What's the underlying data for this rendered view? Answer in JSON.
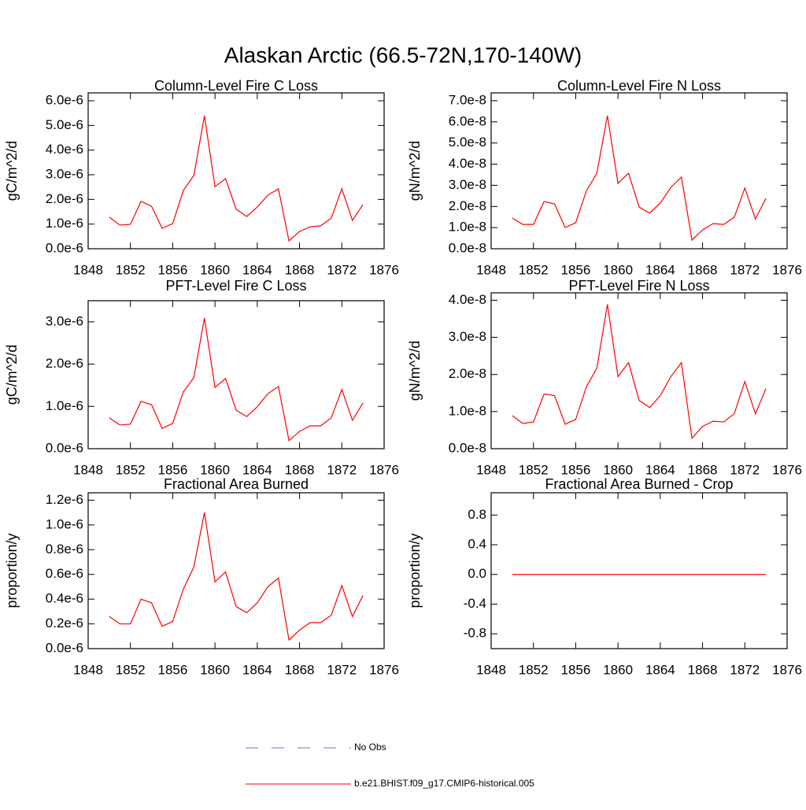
{
  "title": "Alaskan Arctic (66.5-72N,170-140W)",
  "chart_data": [
    {
      "type": "line",
      "title": "Column-Level Fire C Loss",
      "ylabel": "gC/m^2/d",
      "color": "#ff0000",
      "x": [
        1850,
        1851,
        1852,
        1853,
        1854,
        1855,
        1856,
        1857,
        1858,
        1859,
        1860,
        1861,
        1862,
        1863,
        1864,
        1865,
        1866,
        1867,
        1868,
        1869,
        1870,
        1871,
        1872,
        1873,
        1874
      ],
      "values": [
        1.28e-06,
        9.6e-07,
        9.9e-07,
        1.92e-06,
        1.72e-06,
        8.3e-07,
        1.02e-06,
        2.36e-06,
        2.97e-06,
        5.39e-06,
        2.52e-06,
        2.84e-06,
        1.6e-06,
        1.31e-06,
        1.69e-06,
        2.17e-06,
        2.43e-06,
        3.2e-07,
        7e-07,
        8.9e-07,
        9.3e-07,
        1.24e-06,
        2.43e-06,
        1.15e-06,
        1.79e-06
      ],
      "xlim": [
        1848,
        1876
      ],
      "xticks": [
        1848,
        1852,
        1856,
        1860,
        1864,
        1868,
        1872,
        1876
      ],
      "ylim": [
        0,
        6.32e-06
      ],
      "yticks": [
        {
          "value": 0,
          "label": "0.0e-6"
        },
        {
          "value": 1e-06,
          "label": "1.0e-6"
        },
        {
          "value": 2e-06,
          "label": "2.0e-6"
        },
        {
          "value": 3e-06,
          "label": "3.0e-6"
        },
        {
          "value": 4e-06,
          "label": "4.0e-6"
        },
        {
          "value": 5e-06,
          "label": "5.0e-6"
        },
        {
          "value": 6e-06,
          "label": "6.0e-6"
        }
      ]
    },
    {
      "type": "line",
      "title": "Column-Level Fire N Loss",
      "ylabel": "gN/m^2/d",
      "color": "#ff0000",
      "x": [
        1850,
        1851,
        1852,
        1853,
        1854,
        1855,
        1856,
        1857,
        1858,
        1859,
        1860,
        1861,
        1862,
        1863,
        1864,
        1865,
        1866,
        1867,
        1868,
        1869,
        1870,
        1871,
        1872,
        1873,
        1874
      ],
      "values": [
        1.45e-08,
        1.15e-08,
        1.15e-08,
        2.23e-08,
        2.12e-08,
        1e-08,
        1.23e-08,
        2.72e-08,
        3.57e-08,
        6.29e-08,
        3.09e-08,
        3.57e-08,
        1.97e-08,
        1.68e-08,
        2.16e-08,
        2.9e-08,
        3.39e-08,
        4.1e-09,
        8.9e-09,
        1.19e-08,
        1.15e-08,
        1.49e-08,
        2.87e-08,
        1.41e-08,
        2.38e-08
      ],
      "xlim": [
        1848,
        1876
      ],
      "xticks": [
        1848,
        1852,
        1856,
        1860,
        1864,
        1868,
        1872,
        1876
      ],
      "ylim": [
        0,
        7.37e-08
      ],
      "yticks": [
        {
          "value": 0,
          "label": "0.0e-8"
        },
        {
          "value": 1e-08,
          "label": "1.0e-8"
        },
        {
          "value": 2e-08,
          "label": "2.0e-8"
        },
        {
          "value": 3e-08,
          "label": "3.0e-8"
        },
        {
          "value": 4e-08,
          "label": "4.0e-8"
        },
        {
          "value": 5e-08,
          "label": "5.0e-8"
        },
        {
          "value": 6e-08,
          "label": "6.0e-8"
        },
        {
          "value": 7e-08,
          "label": "7.0e-8"
        }
      ]
    },
    {
      "type": "line",
      "title": "PFT-Level Fire C Loss",
      "ylabel": "gC/m^2/d",
      "color": "#ff0000",
      "x": [
        1850,
        1851,
        1852,
        1853,
        1854,
        1855,
        1856,
        1857,
        1858,
        1859,
        1860,
        1861,
        1862,
        1863,
        1864,
        1865,
        1866,
        1867,
        1868,
        1869,
        1870,
        1871,
        1872,
        1873,
        1874
      ],
      "values": [
        7.3e-07,
        5.6e-07,
        5.8e-07,
        1.12e-06,
        1.04e-06,
        4.8e-07,
        6e-07,
        1.34e-06,
        1.68e-06,
        3.09e-06,
        1.45e-06,
        1.66e-06,
        9.1e-07,
        7.6e-07,
        9.9e-07,
        1.3e-06,
        1.47e-06,
        1.9e-07,
        4.1e-07,
        5.4e-07,
        5.4e-07,
        7.3e-07,
        1.4e-06,
        6.7e-07,
        1.08e-06
      ],
      "xlim": [
        1848,
        1876
      ],
      "xticks": [
        1848,
        1852,
        1856,
        1860,
        1864,
        1868,
        1872,
        1876
      ],
      "ylim": [
        0,
        3.5e-06
      ],
      "yticks": [
        {
          "value": 0,
          "label": "0.0e-6"
        },
        {
          "value": 1e-06,
          "label": "1.0e-6"
        },
        {
          "value": 2e-06,
          "label": "2.0e-6"
        },
        {
          "value": 3e-06,
          "label": "3.0e-6"
        }
      ]
    },
    {
      "type": "line",
      "title": "PFT-Level Fire N Loss",
      "ylabel": "gN/m^2/d",
      "color": "#ff0000",
      "x": [
        1850,
        1851,
        1852,
        1853,
        1854,
        1855,
        1856,
        1857,
        1858,
        1859,
        1860,
        1861,
        1862,
        1863,
        1864,
        1865,
        1866,
        1867,
        1868,
        1869,
        1870,
        1871,
        1872,
        1873,
        1874
      ],
      "values": [
        8.9e-09,
        6.8e-09,
        7.2e-09,
        1.47e-08,
        1.43e-08,
        6.6e-09,
        7.9e-09,
        1.66e-08,
        2.17e-08,
        3.89e-08,
        1.94e-08,
        2.32e-08,
        1.3e-08,
        1.11e-08,
        1.43e-08,
        1.94e-08,
        2.32e-08,
        2.8e-09,
        6e-09,
        7.4e-09,
        7.2e-09,
        9.4e-09,
        1.81e-08,
        9.4e-09,
        1.62e-08
      ],
      "xlim": [
        1848,
        1876
      ],
      "xticks": [
        1848,
        1852,
        1856,
        1860,
        1864,
        1868,
        1872,
        1876
      ],
      "ylim": [
        0,
        4.2e-08
      ],
      "yticks": [
        {
          "value": 0,
          "label": "0.0e-8"
        },
        {
          "value": 1e-08,
          "label": "1.0e-8"
        },
        {
          "value": 2e-08,
          "label": "2.0e-8"
        },
        {
          "value": 3e-08,
          "label": "3.0e-8"
        },
        {
          "value": 4e-08,
          "label": "4.0e-8"
        }
      ]
    },
    {
      "type": "line",
      "title": "Fractional Area Burned",
      "ylabel": "proportion/y",
      "color": "#ff0000",
      "x": [
        1850,
        1851,
        1852,
        1853,
        1854,
        1855,
        1856,
        1857,
        1858,
        1859,
        1860,
        1861,
        1862,
        1863,
        1864,
        1865,
        1866,
        1867,
        1868,
        1869,
        1870,
        1871,
        1872,
        1873,
        1874
      ],
      "values": [
        2.6e-07,
        2e-07,
        2e-07,
        4e-07,
        3.7e-07,
        1.8e-07,
        2.2e-07,
        4.8e-07,
        6.6e-07,
        1.1e-06,
        5.4e-07,
        6.2e-07,
        3.4e-07,
        2.9e-07,
        3.7e-07,
        5e-07,
        5.7e-07,
        7e-08,
        1.5e-07,
        2.1e-07,
        2.1e-07,
        2.7e-07,
        5.1e-07,
        2.6e-07,
        4.3e-07
      ],
      "xlim": [
        1848,
        1876
      ],
      "xticks": [
        1848,
        1852,
        1856,
        1860,
        1864,
        1868,
        1872,
        1876
      ],
      "ylim": [
        0,
        1.26e-06
      ],
      "yticks": [
        {
          "value": 0,
          "label": "0.0e-6"
        },
        {
          "value": 2e-07,
          "label": "0.2e-6"
        },
        {
          "value": 4e-07,
          "label": "0.4e-6"
        },
        {
          "value": 6e-07,
          "label": "0.6e-6"
        },
        {
          "value": 8e-07,
          "label": "0.8e-6"
        },
        {
          "value": 1e-06,
          "label": "1.0e-6"
        },
        {
          "value": 1.2e-06,
          "label": "1.2e-6"
        }
      ]
    },
    {
      "type": "line",
      "title": "Fractional Area Burned - Crop",
      "ylabel": "proportion/y",
      "color": "#ff0000",
      "x": [
        1850,
        1851,
        1852,
        1853,
        1854,
        1855,
        1856,
        1857,
        1858,
        1859,
        1860,
        1861,
        1862,
        1863,
        1864,
        1865,
        1866,
        1867,
        1868,
        1869,
        1870,
        1871,
        1872,
        1873,
        1874
      ],
      "values": [
        0,
        0,
        0,
        0,
        0,
        0,
        0,
        0,
        0,
        0,
        0,
        0,
        0,
        0,
        0,
        0,
        0,
        0,
        0,
        0,
        0,
        0,
        0,
        0,
        0
      ],
      "xlim": [
        1848,
        1876
      ],
      "xticks": [
        1848,
        1852,
        1856,
        1860,
        1864,
        1868,
        1872,
        1876
      ],
      "ylim": [
        -1.0,
        1.1
      ],
      "yticks": [
        -0.8,
        -0.4,
        {
          "value": 0,
          "label": "0.0"
        },
        0.4,
        0.8
      ]
    }
  ],
  "legend": [
    {
      "name": "No Obs",
      "color": "#6f6fd6",
      "dashed": true
    },
    {
      "name": "b.e21.BHIST.f09_g17.CMIP6-historical.005",
      "color": "#ff0000",
      "dashed": false
    }
  ]
}
